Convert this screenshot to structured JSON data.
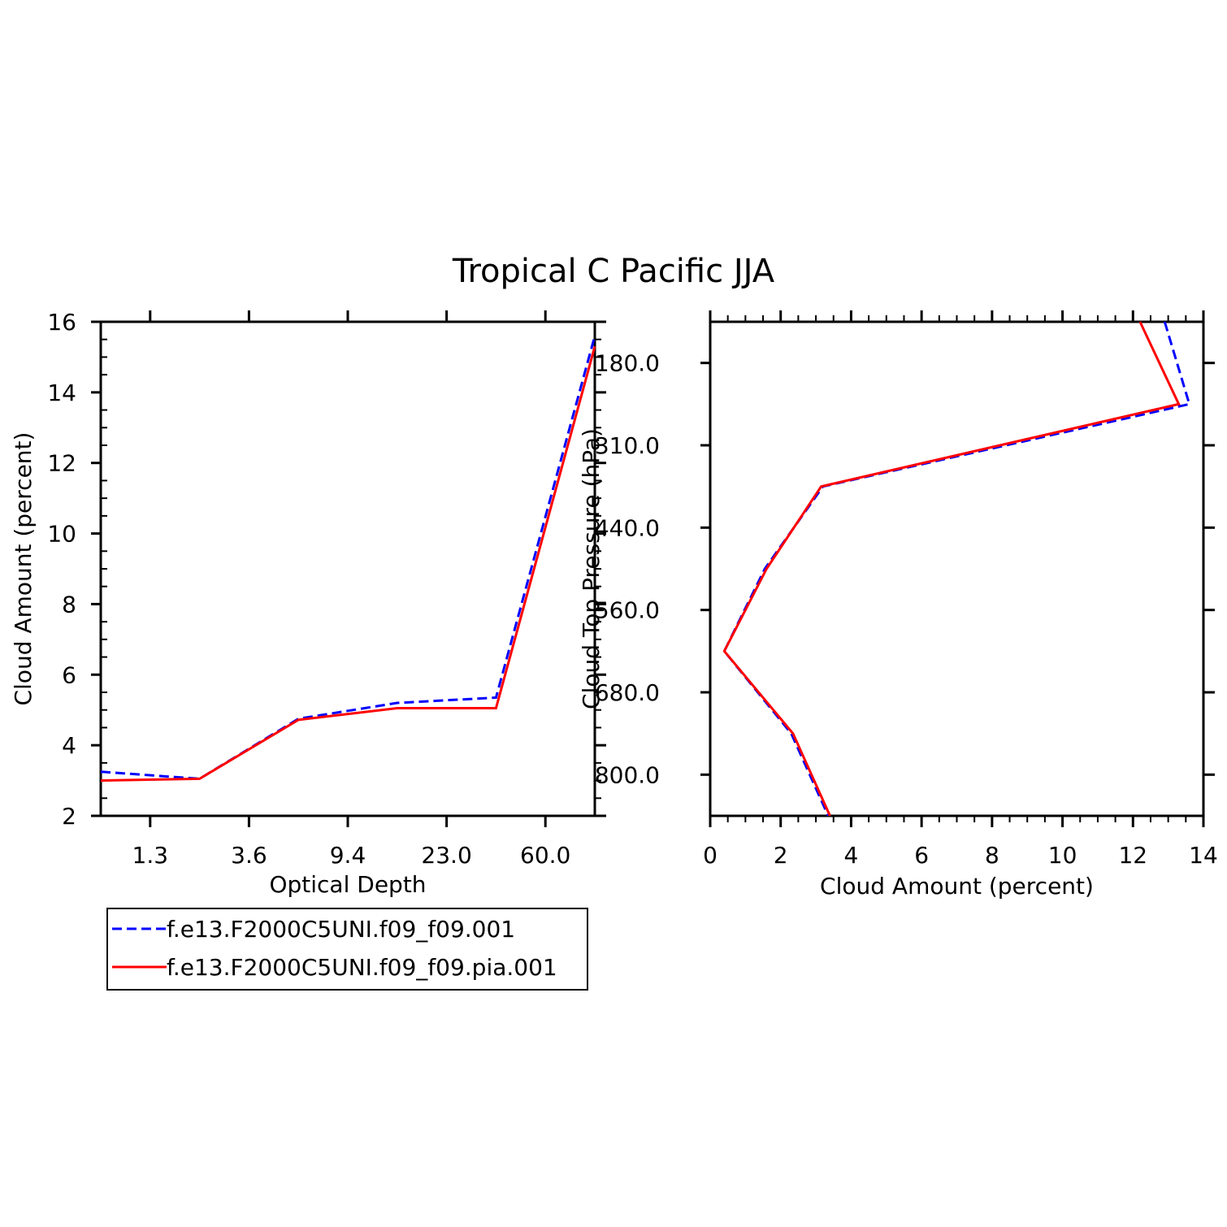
{
  "figure": {
    "title": "Tropical C Pacific JJA"
  },
  "legend": {
    "entries": [
      {
        "label": "f.e13.F2000C5UNI.f09_f09.001",
        "color": "#0000ff",
        "dash": "dashed"
      },
      {
        "label": "f.e13.F2000C5UNI.f09_f09.pia.001",
        "color": "#ff0000",
        "dash": "solid"
      }
    ]
  },
  "chart_data": [
    {
      "type": "line",
      "xlabel": "Optical Depth",
      "ylabel": "Cloud Amount (percent)",
      "xtick_labels": [
        "1.3",
        "3.6",
        "9.4",
        "23.0",
        "60.0"
      ],
      "ylim": [
        2,
        16
      ],
      "yticks": [
        2,
        4,
        6,
        8,
        10,
        12,
        14,
        16
      ],
      "series": [
        {
          "name": "f.e13.F2000C5UNI.f09_f09.001",
          "color": "#0000ff",
          "dash": "dashed",
          "points": [
            [
              0,
              3.25
            ],
            [
              1,
              3.05
            ],
            [
              2,
              4.75
            ],
            [
              3,
              5.2
            ],
            [
              4,
              5.35
            ],
            [
              5,
              15.6
            ]
          ]
        },
        {
          "name": "f.e13.F2000C5UNI.f09_f09.pia.001",
          "color": "#ff0000",
          "dash": "solid",
          "points": [
            [
              0,
              3.0
            ],
            [
              1,
              3.05
            ],
            [
              2,
              4.72
            ],
            [
              3,
              5.05
            ],
            [
              4,
              5.05
            ],
            [
              5,
              15.3
            ]
          ]
        }
      ]
    },
    {
      "type": "line",
      "xlabel": "Cloud Amount (percent)",
      "ylabel": "Cloud Top Pressure (hPa)",
      "xlim": [
        0,
        14
      ],
      "xticks": [
        0,
        2,
        4,
        6,
        8,
        10,
        12,
        14
      ],
      "ytick_labels": [
        "180.0",
        "310.0",
        "440.0",
        "560.0",
        "680.0",
        "800.0"
      ],
      "series": [
        {
          "name": "f.e13.F2000C5UNI.f09_f09.001",
          "color": "#0000ff",
          "dash": "dashed",
          "points": [
            [
              12.9,
              0
            ],
            [
              13.6,
              1
            ],
            [
              3.2,
              2
            ],
            [
              1.55,
              3
            ],
            [
              0.4,
              4
            ],
            [
              2.3,
              5
            ],
            [
              3.35,
              6
            ]
          ]
        },
        {
          "name": "f.e13.F2000C5UNI.f09_f09.pia.001",
          "color": "#ff0000",
          "dash": "solid",
          "points": [
            [
              12.2,
              0
            ],
            [
              13.3,
              1
            ],
            [
              3.15,
              2
            ],
            [
              1.6,
              3
            ],
            [
              0.4,
              4
            ],
            [
              2.35,
              5
            ],
            [
              3.4,
              6
            ]
          ]
        }
      ]
    }
  ]
}
